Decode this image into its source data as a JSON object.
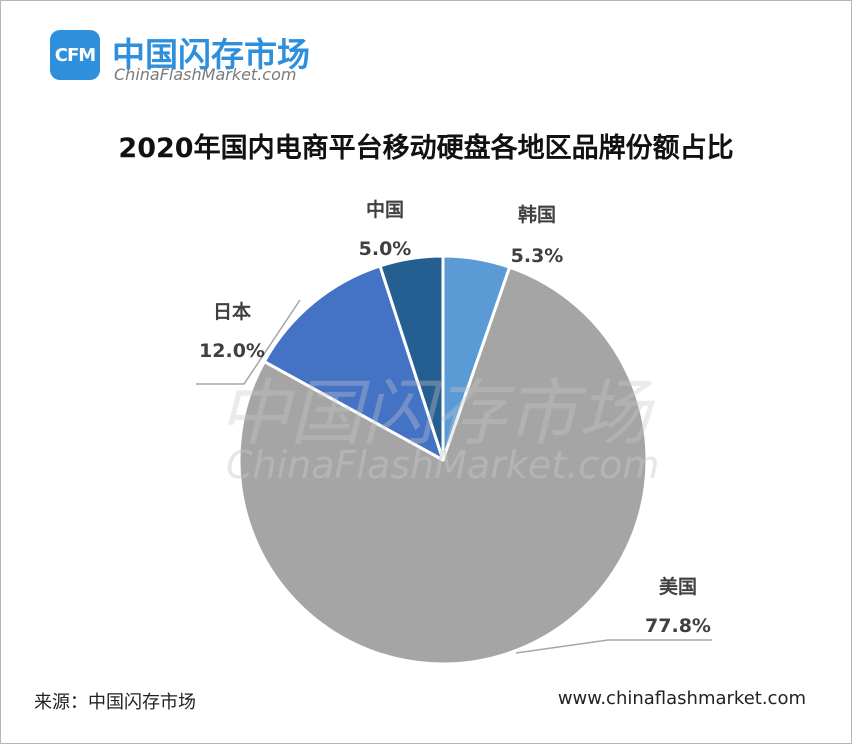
{
  "brand": {
    "logo_text": "CFM",
    "name": "中国闪存市场",
    "site": "ChinaFlashMarket.com",
    "brand_color": "#2e8fdc"
  },
  "watermark": {
    "line1": "中国闪存市场",
    "line2": "ChinaFlashMarket.com"
  },
  "chart_data": {
    "type": "pie",
    "title": "2020年国内电商平台移动硬盘各地区品牌份额占比",
    "start_angle_deg": 0,
    "direction": "clockwise",
    "slices": [
      {
        "name": "韩国",
        "value": 5.3,
        "value_label": "5.3%",
        "color": "#5b9bd5"
      },
      {
        "name": "美国",
        "value": 77.8,
        "value_label": "77.8%",
        "color": "#a5a5a5"
      },
      {
        "name": "日本",
        "value": 12.0,
        "value_label": "12.0%",
        "color": "#4472c4"
      },
      {
        "name": "中国",
        "value": 5.0,
        "value_label": "5.0%",
        "color": "#255e91"
      }
    ]
  },
  "footer": {
    "source": "来源：中国闪存市场",
    "url": "www.chinaflashmarket.com"
  }
}
